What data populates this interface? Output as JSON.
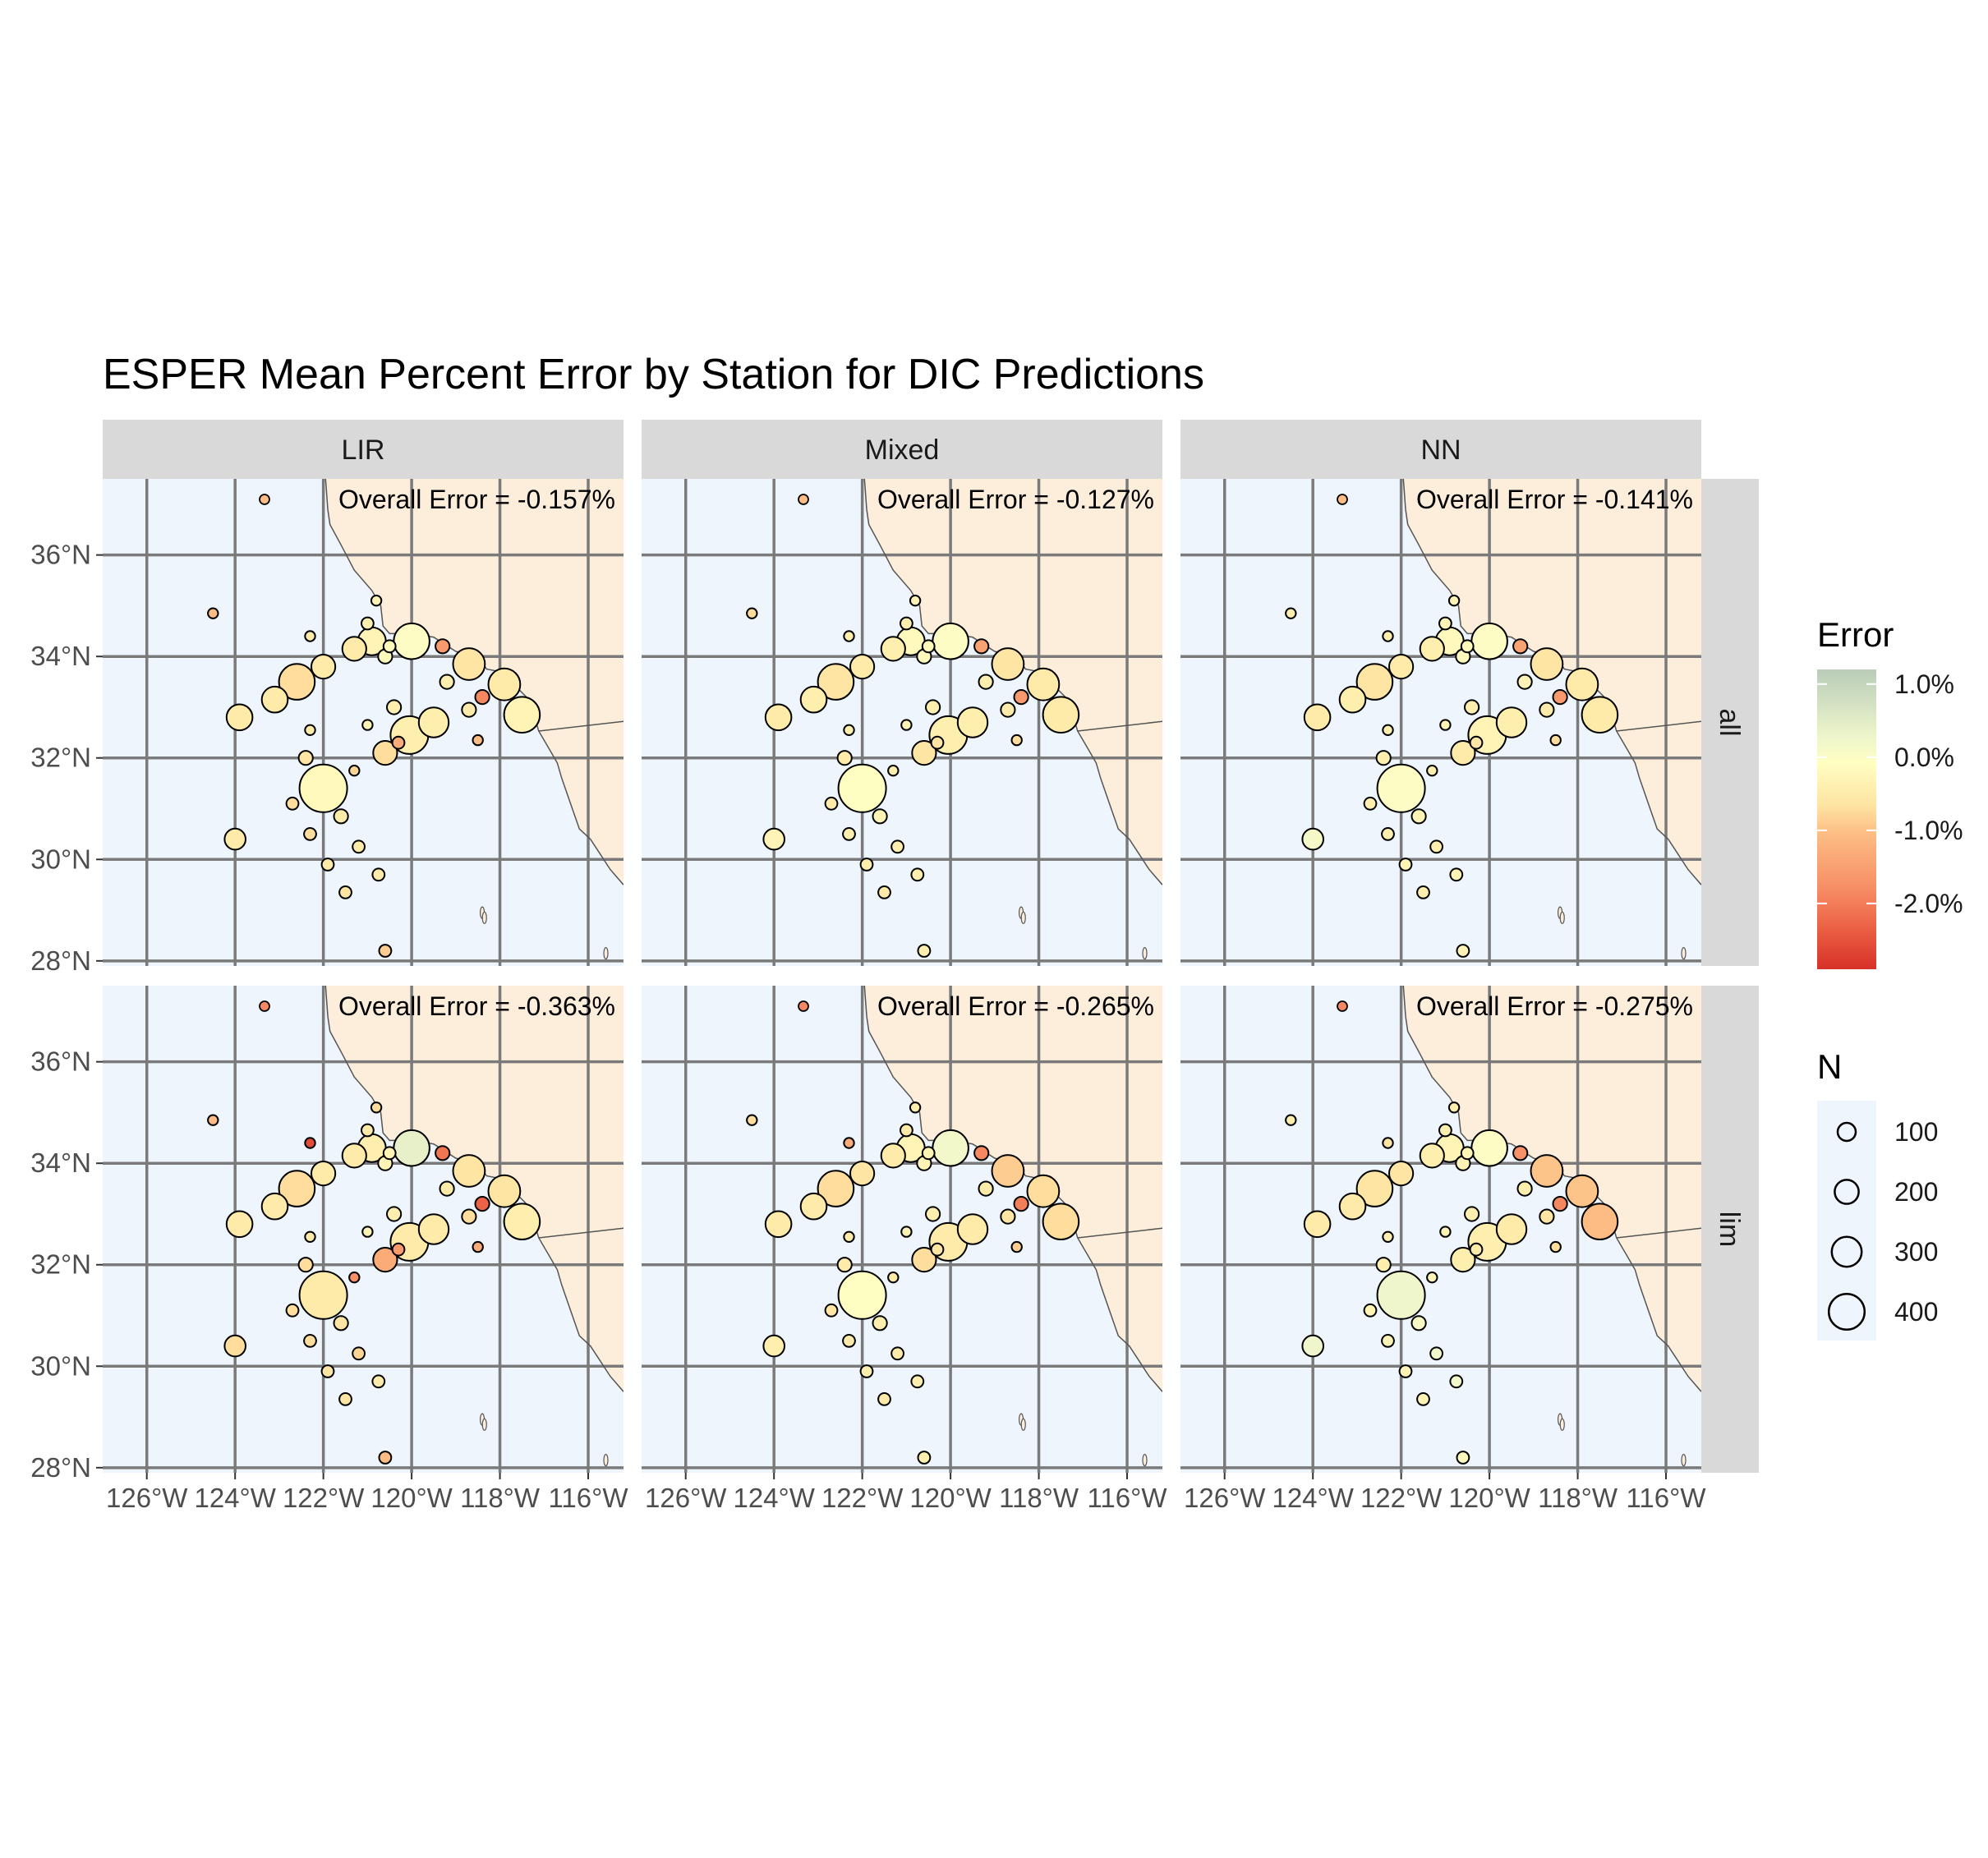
{
  "chart_data": {
    "type": "scatter",
    "title": "ESPER Mean Percent Error by Station for DIC Predictions",
    "col_facets": [
      "LIR",
      "Mixed",
      "NN"
    ],
    "row_facets": [
      "all",
      "lim"
    ],
    "x_ticks": [
      "126°W",
      "124°W",
      "122°W",
      "120°W",
      "118°W",
      "116°W"
    ],
    "y_ticks": [
      "28°N",
      "30°N",
      "32°N",
      "34°N",
      "36°N"
    ],
    "xlim": [
      -127,
      -115.2
    ],
    "ylim": [
      27.9,
      37.5
    ],
    "annotations": {
      "LIR": {
        "all": "Overall Error = -0.157%",
        "lim": "Overall Error = -0.363%"
      },
      "Mixed": {
        "all": "Overall Error = -0.127%",
        "lim": "Overall Error = -0.265%"
      },
      "NN": {
        "all": "Overall Error = -0.141%",
        "lim": "Overall Error = -0.275%"
      }
    },
    "annotation_marker_error": {
      "LIR": {
        "all": -1.0,
        "lim": -1.6
      },
      "Mixed": {
        "all": -1.0,
        "lim": -1.6
      },
      "NN": {
        "all": -1.0,
        "lim": -1.6
      }
    },
    "stations": [
      {
        "lon": -124.5,
        "lat": 34.85,
        "n": 20
      },
      {
        "lon": -122.3,
        "lat": 34.4,
        "n": 20
      },
      {
        "lon": -120.8,
        "lat": 35.1,
        "n": 20
      },
      {
        "lon": -121.0,
        "lat": 34.65,
        "n": 40
      },
      {
        "lon": -120.9,
        "lat": 34.3,
        "n": 200
      },
      {
        "lon": -121.3,
        "lat": 34.15,
        "n": 160
      },
      {
        "lon": -120.6,
        "lat": 34.0,
        "n": 60
      },
      {
        "lon": -120.5,
        "lat": 34.2,
        "n": 40
      },
      {
        "lon": -120.0,
        "lat": 34.3,
        "n": 280
      },
      {
        "lon": -119.3,
        "lat": 34.2,
        "n": 60
      },
      {
        "lon": -122.0,
        "lat": 33.8,
        "n": 160
      },
      {
        "lon": -122.6,
        "lat": 33.5,
        "n": 280
      },
      {
        "lon": -123.1,
        "lat": 33.15,
        "n": 180
      },
      {
        "lon": -123.9,
        "lat": 32.8,
        "n": 180
      },
      {
        "lon": -122.3,
        "lat": 32.55,
        "n": 20
      },
      {
        "lon": -121.0,
        "lat": 32.65,
        "n": 20
      },
      {
        "lon": -120.4,
        "lat": 33.0,
        "n": 60
      },
      {
        "lon": -119.2,
        "lat": 33.5,
        "n": 60
      },
      {
        "lon": -118.7,
        "lat": 33.85,
        "n": 240
      },
      {
        "lon": -118.7,
        "lat": 32.95,
        "n": 60
      },
      {
        "lon": -118.4,
        "lat": 33.2,
        "n": 60
      },
      {
        "lon": -118.5,
        "lat": 32.35,
        "n": 20
      },
      {
        "lon": -117.9,
        "lat": 33.45,
        "n": 240
      },
      {
        "lon": -117.5,
        "lat": 32.85,
        "n": 280
      },
      {
        "lon": -119.5,
        "lat": 32.7,
        "n": 220
      },
      {
        "lon": -120.05,
        "lat": 32.45,
        "n": 300
      },
      {
        "lon": -120.3,
        "lat": 32.3,
        "n": 40
      },
      {
        "lon": -120.6,
        "lat": 32.1,
        "n": 160
      },
      {
        "lon": -122.4,
        "lat": 32.0,
        "n": 60
      },
      {
        "lon": -121.3,
        "lat": 31.75,
        "n": 20
      },
      {
        "lon": -122.0,
        "lat": 31.4,
        "n": 400
      },
      {
        "lon": -122.7,
        "lat": 31.1,
        "n": 40
      },
      {
        "lon": -121.6,
        "lat": 30.85,
        "n": 60
      },
      {
        "lon": -122.3,
        "lat": 30.5,
        "n": 40
      },
      {
        "lon": -124.0,
        "lat": 30.4,
        "n": 130
      },
      {
        "lon": -121.2,
        "lat": 30.25,
        "n": 40
      },
      {
        "lon": -121.9,
        "lat": 29.9,
        "n": 40
      },
      {
        "lon": -120.75,
        "lat": 29.7,
        "n": 40
      },
      {
        "lon": -121.5,
        "lat": 29.35,
        "n": 40
      },
      {
        "lon": -120.6,
        "lat": 28.2,
        "n": 40
      }
    ],
    "errors": {
      "LIR": {
        "all": [
          -1.0,
          -0.4,
          -0.2,
          -0.3,
          -0.2,
          -0.4,
          -0.1,
          -0.1,
          0.1,
          -1.4,
          -0.4,
          -0.6,
          -0.4,
          -0.4,
          -0.4,
          -0.2,
          -0.3,
          -0.3,
          -0.5,
          -0.4,
          -1.6,
          -1.0,
          -0.4,
          -0.2,
          -0.3,
          -0.3,
          -1.2,
          -0.6,
          -0.5,
          -0.7,
          -0.1,
          -0.6,
          -0.4,
          -0.6,
          -0.4,
          -0.4,
          -0.4,
          -0.4,
          -0.5,
          -0.8
        ],
        "lim": [
          -1.0,
          -2.4,
          -0.6,
          -0.4,
          -0.3,
          -0.4,
          -0.2,
          -0.2,
          0.6,
          -1.8,
          -0.4,
          -0.6,
          -0.4,
          -0.4,
          -0.4,
          -0.2,
          -0.3,
          -0.4,
          -0.5,
          -0.6,
          -2.0,
          -1.2,
          -0.5,
          -0.3,
          -0.4,
          -0.4,
          -1.4,
          -1.2,
          -0.6,
          -1.5,
          -0.4,
          -0.6,
          -0.5,
          -0.6,
          -0.6,
          -0.7,
          -0.5,
          -0.4,
          -0.5,
          -1.0
        ]
      },
      "Mixed": {
        "all": [
          -0.6,
          -0.3,
          -0.2,
          -0.3,
          -0.1,
          -0.3,
          -0.1,
          -0.1,
          0.1,
          -1.3,
          -0.4,
          -0.5,
          -0.3,
          -0.4,
          -0.3,
          -0.2,
          -0.3,
          -0.3,
          -0.5,
          -0.4,
          -1.4,
          -0.6,
          -0.4,
          -0.4,
          -0.3,
          -0.3,
          -0.5,
          -0.5,
          -0.4,
          -0.3,
          0.0,
          -0.4,
          -0.2,
          -0.3,
          -0.2,
          -0.3,
          -0.3,
          -0.3,
          -0.4,
          -0.3
        ],
        "lim": [
          -0.6,
          -1.2,
          -0.3,
          -0.4,
          -0.2,
          -0.4,
          -0.2,
          -0.2,
          0.4,
          -1.6,
          -0.5,
          -0.6,
          -0.4,
          -0.4,
          -0.4,
          -0.2,
          -0.3,
          -0.4,
          -0.8,
          -0.5,
          -1.7,
          -0.8,
          -0.6,
          -0.6,
          -0.4,
          -0.4,
          -0.5,
          -0.6,
          -0.4,
          -0.4,
          0.0,
          -0.5,
          -0.3,
          -0.4,
          -0.3,
          -0.4,
          -0.3,
          -0.3,
          -0.4,
          -0.3
        ]
      },
      "NN": {
        "all": [
          -0.3,
          -0.3,
          -0.2,
          -0.2,
          -0.1,
          -0.3,
          -0.1,
          -0.1,
          0.1,
          -1.3,
          -0.4,
          -0.5,
          -0.3,
          -0.4,
          -0.3,
          -0.2,
          -0.3,
          -0.2,
          -0.5,
          -0.4,
          -1.4,
          -0.6,
          -0.4,
          -0.4,
          -0.3,
          -0.2,
          -0.5,
          -0.4,
          -0.3,
          -0.3,
          0.1,
          -0.3,
          -0.2,
          -0.3,
          0.3,
          -0.3,
          -0.2,
          -0.2,
          -0.3,
          -0.2
        ],
        "lim": [
          -0.3,
          -0.5,
          -0.3,
          -0.3,
          -0.2,
          -0.3,
          -0.2,
          -0.2,
          0.1,
          -1.5,
          -0.5,
          -0.5,
          -0.4,
          -0.4,
          -0.3,
          -0.2,
          -0.3,
          -0.3,
          -0.9,
          -0.5,
          -1.6,
          -0.6,
          -0.9,
          -1.0,
          -0.4,
          -0.3,
          -0.4,
          -0.3,
          -0.3,
          -0.2,
          0.5,
          -0.2,
          0.2,
          -0.2,
          0.5,
          0.4,
          -0.2,
          0.4,
          -0.2,
          -0.1
        ]
      }
    },
    "legend": {
      "color_title": "Error",
      "color_labels": [
        "1.0%",
        "0.0%",
        "-1.0%",
        "-2.0%"
      ],
      "color_breaks": [
        1.0,
        0.0,
        -1.0,
        -2.0
      ],
      "color_range": [
        -2.9,
        1.2
      ],
      "size_title": "N",
      "size_labels": [
        "100",
        "200",
        "300",
        "400"
      ],
      "size_breaks": [
        100,
        200,
        300,
        400
      ]
    }
  },
  "colors": {
    "ocean": "#eef5fd",
    "land": "#fdeedb",
    "grid": "#7a7a7a",
    "strip": "#d9d9d9",
    "positive": "#b9cdb8",
    "neutral": "#fffec2",
    "negative": "#d73027"
  }
}
